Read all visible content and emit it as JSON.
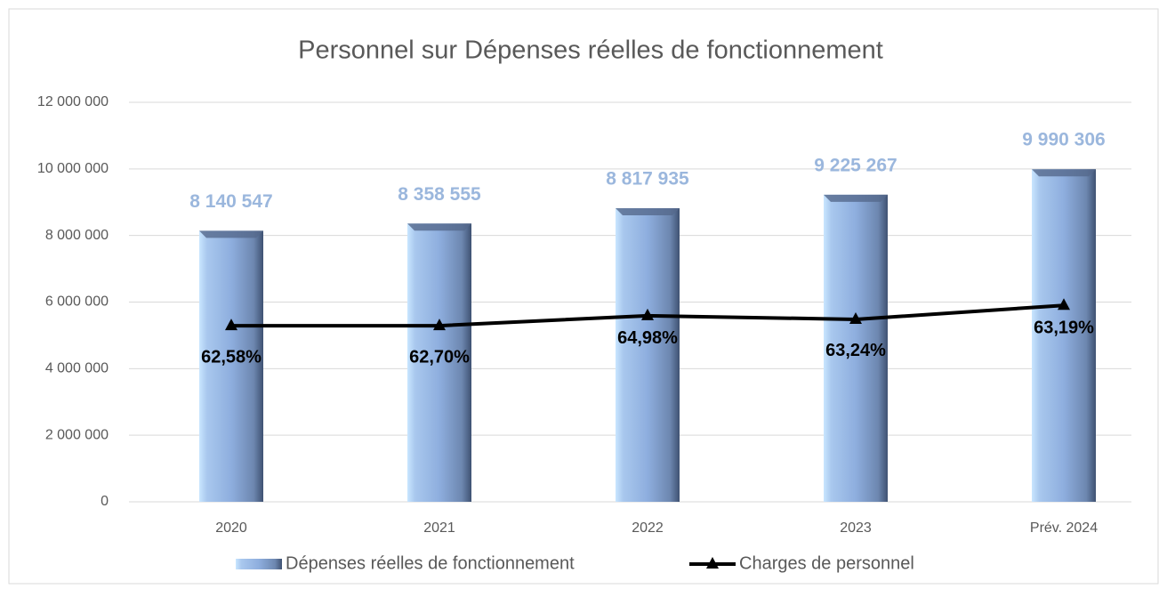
{
  "chart_data": {
    "type": "bar_line",
    "title": "Personnel sur Dépenses réelles de fonctionnement",
    "categories": [
      "2020",
      "2021",
      "2022",
      "2023",
      "Prév. 2024"
    ],
    "series": [
      {
        "name": "Dépenses réelles de fonctionnement",
        "type": "bar",
        "color": "#8eaede",
        "values": [
          8140547,
          8358555,
          8817935,
          9225267,
          9990306
        ],
        "value_labels": [
          "8 140 547",
          "8 358 555",
          "8 817 935",
          "9 225 267",
          "9 990 306"
        ]
      },
      {
        "name": "Charges de personnel",
        "type": "line",
        "color": "#000000",
        "values": [
          5290000,
          5290000,
          5590000,
          5480000,
          5900000
        ],
        "point_labels": [
          "62,58%",
          "62,70%",
          "64,98%",
          "63,24%",
          "63,19%"
        ]
      }
    ],
    "ylim": [
      0,
      12000000
    ],
    "yticks": [
      0,
      {
        "value": 2000000,
        "label": "2 000 000"
      },
      {
        "value": 4000000,
        "label": "4 000 000"
      },
      {
        "value": 6000000,
        "label": "6 000 000"
      },
      {
        "value": 8000000,
        "label": "8 000 000"
      },
      {
        "value": 10000000,
        "label": "10 000 000"
      },
      {
        "value": 12000000,
        "label": "12 000 000"
      }
    ],
    "grid": true,
    "legend": "bottom"
  }
}
